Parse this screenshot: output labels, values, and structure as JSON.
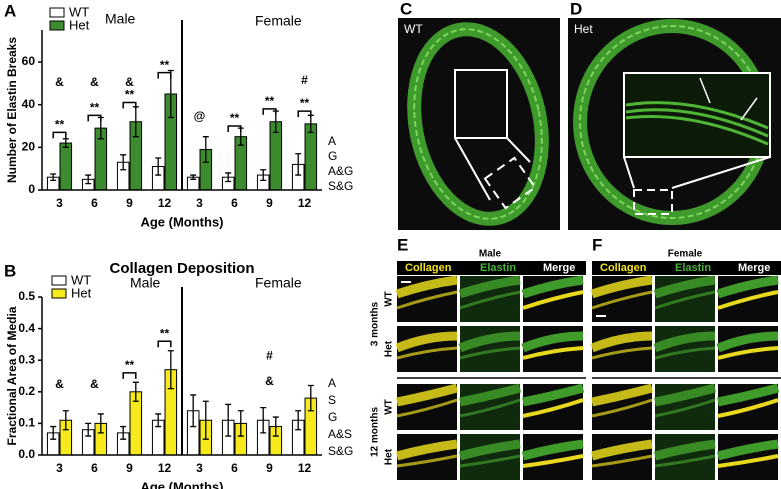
{
  "panels": {
    "labels": [
      "A",
      "B",
      "C",
      "D",
      "E",
      "F"
    ]
  },
  "chart_data": [
    {
      "type": "bar",
      "y_label": "Number of Elastin Breaks",
      "x_label": "Age (Months)",
      "groups": [
        "Male",
        "Female"
      ],
      "categories": [
        "3",
        "6",
        "9",
        "12",
        "3",
        "6",
        "9",
        "12"
      ],
      "series": [
        {
          "name": "WT",
          "color": "#ffffff",
          "values": [
            6,
            5,
            13,
            11,
            6,
            6,
            7,
            12
          ],
          "errors": [
            1.5,
            2,
            3.5,
            4,
            1,
            2,
            2.5,
            5
          ]
        },
        {
          "name": "Het",
          "color": "#3d8b2f",
          "values": [
            22,
            29,
            32,
            45,
            19,
            25,
            32,
            31
          ],
          "errors": [
            2,
            5,
            7,
            11,
            6,
            4,
            5,
            4
          ]
        }
      ],
      "ylim": [
        0,
        75
      ],
      "yticks": [
        0,
        20,
        40,
        60
      ],
      "annotations": [
        "**",
        "**",
        "**",
        "**",
        "&",
        "&",
        "&",
        "@",
        "**",
        "**",
        "**",
        "#"
      ],
      "stat_labels": [
        "A",
        "G",
        "A&G",
        "S&G"
      ]
    },
    {
      "type": "bar",
      "title": "Collagen Deposition",
      "y_label": "Fractional Area of Media",
      "x_label": "Age (Months)",
      "groups": [
        "Male",
        "Female"
      ],
      "categories": [
        "3",
        "6",
        "9",
        "12",
        "3",
        "6",
        "9",
        "12"
      ],
      "series": [
        {
          "name": "WT",
          "color": "#ffffff",
          "values": [
            0.07,
            0.08,
            0.07,
            0.11,
            0.14,
            0.11,
            0.11,
            0.11
          ],
          "errors": [
            0.02,
            0.02,
            0.02,
            0.02,
            0.05,
            0.05,
            0.04,
            0.03
          ]
        },
        {
          "name": "Het",
          "color": "#f7ea1c",
          "values": [
            0.11,
            0.1,
            0.2,
            0.27,
            0.11,
            0.1,
            0.09,
            0.18
          ],
          "errors": [
            0.03,
            0.03,
            0.03,
            0.06,
            0.06,
            0.04,
            0.03,
            0.04
          ]
        }
      ],
      "ylim": [
        0,
        0.5
      ],
      "yticks": [
        {
          "value": 0,
          "label": "0.0"
        },
        0.1,
        0.2,
        0.3,
        0.4,
        0.5
      ],
      "annotations": [
        "&",
        "&",
        "**",
        "**",
        "#",
        "&"
      ],
      "stat_labels": [
        "A",
        "S",
        "G",
        "A&S",
        "S&G"
      ]
    }
  ],
  "micrographs": {
    "C": {
      "label": "WT"
    },
    "D": {
      "label": "Het"
    },
    "E": {
      "title": "Male"
    },
    "F": {
      "title": "Female"
    },
    "columns": [
      "Collagen",
      "Elastin",
      "Merge"
    ],
    "rows": [
      "WT",
      "Het",
      "WT",
      "Het"
    ],
    "ages": [
      "3 months",
      "12 months"
    ]
  }
}
